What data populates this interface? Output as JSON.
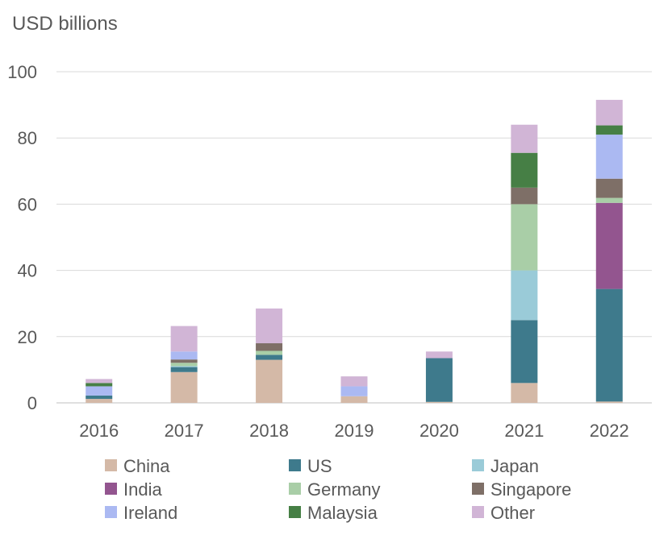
{
  "chart_data": {
    "type": "bar",
    "stacked": true,
    "title": "",
    "ylabel": "USD billions",
    "xlabel": "",
    "ylim": [
      0,
      100
    ],
    "yticks": [
      0,
      20,
      40,
      60,
      80,
      100
    ],
    "grid": true,
    "legend_position": "bottom",
    "categories": [
      "2016",
      "2017",
      "2018",
      "2019",
      "2020",
      "2021",
      "2022"
    ],
    "series": [
      {
        "name": "China",
        "color": "#d4b9a7",
        "values": [
          1.2,
          9.3,
          13.0,
          2.0,
          0.3,
          6.0,
          0.4
        ]
      },
      {
        "name": "US",
        "color": "#3e7a8c",
        "values": [
          1.0,
          1.5,
          1.5,
          0.0,
          13.2,
          19.0,
          34.0
        ]
      },
      {
        "name": "Japan",
        "color": "#9acbd8",
        "values": [
          0.0,
          0.3,
          0.0,
          0.0,
          0.0,
          15.0,
          0.0
        ]
      },
      {
        "name": "India",
        "color": "#93558f",
        "values": [
          0.0,
          0.0,
          0.0,
          0.0,
          0.0,
          0.0,
          26.0
        ]
      },
      {
        "name": "Germany",
        "color": "#a9cea7",
        "values": [
          0.0,
          1.0,
          1.2,
          0.0,
          0.0,
          20.0,
          1.5
        ]
      },
      {
        "name": "Singapore",
        "color": "#7e6f67",
        "values": [
          0.0,
          1.0,
          2.3,
          0.0,
          0.0,
          5.0,
          5.8
        ]
      },
      {
        "name": "Ireland",
        "color": "#abb9f2",
        "values": [
          2.8,
          2.4,
          0.0,
          3.0,
          0.0,
          0.0,
          13.3
        ]
      },
      {
        "name": "Malaysia",
        "color": "#467f45",
        "values": [
          1.0,
          0.0,
          0.0,
          0.0,
          0.0,
          10.5,
          2.8
        ]
      },
      {
        "name": "Other",
        "color": "#d1b5d6",
        "values": [
          1.2,
          7.7,
          10.5,
          3.0,
          2.0,
          8.5,
          7.7
        ]
      }
    ]
  }
}
